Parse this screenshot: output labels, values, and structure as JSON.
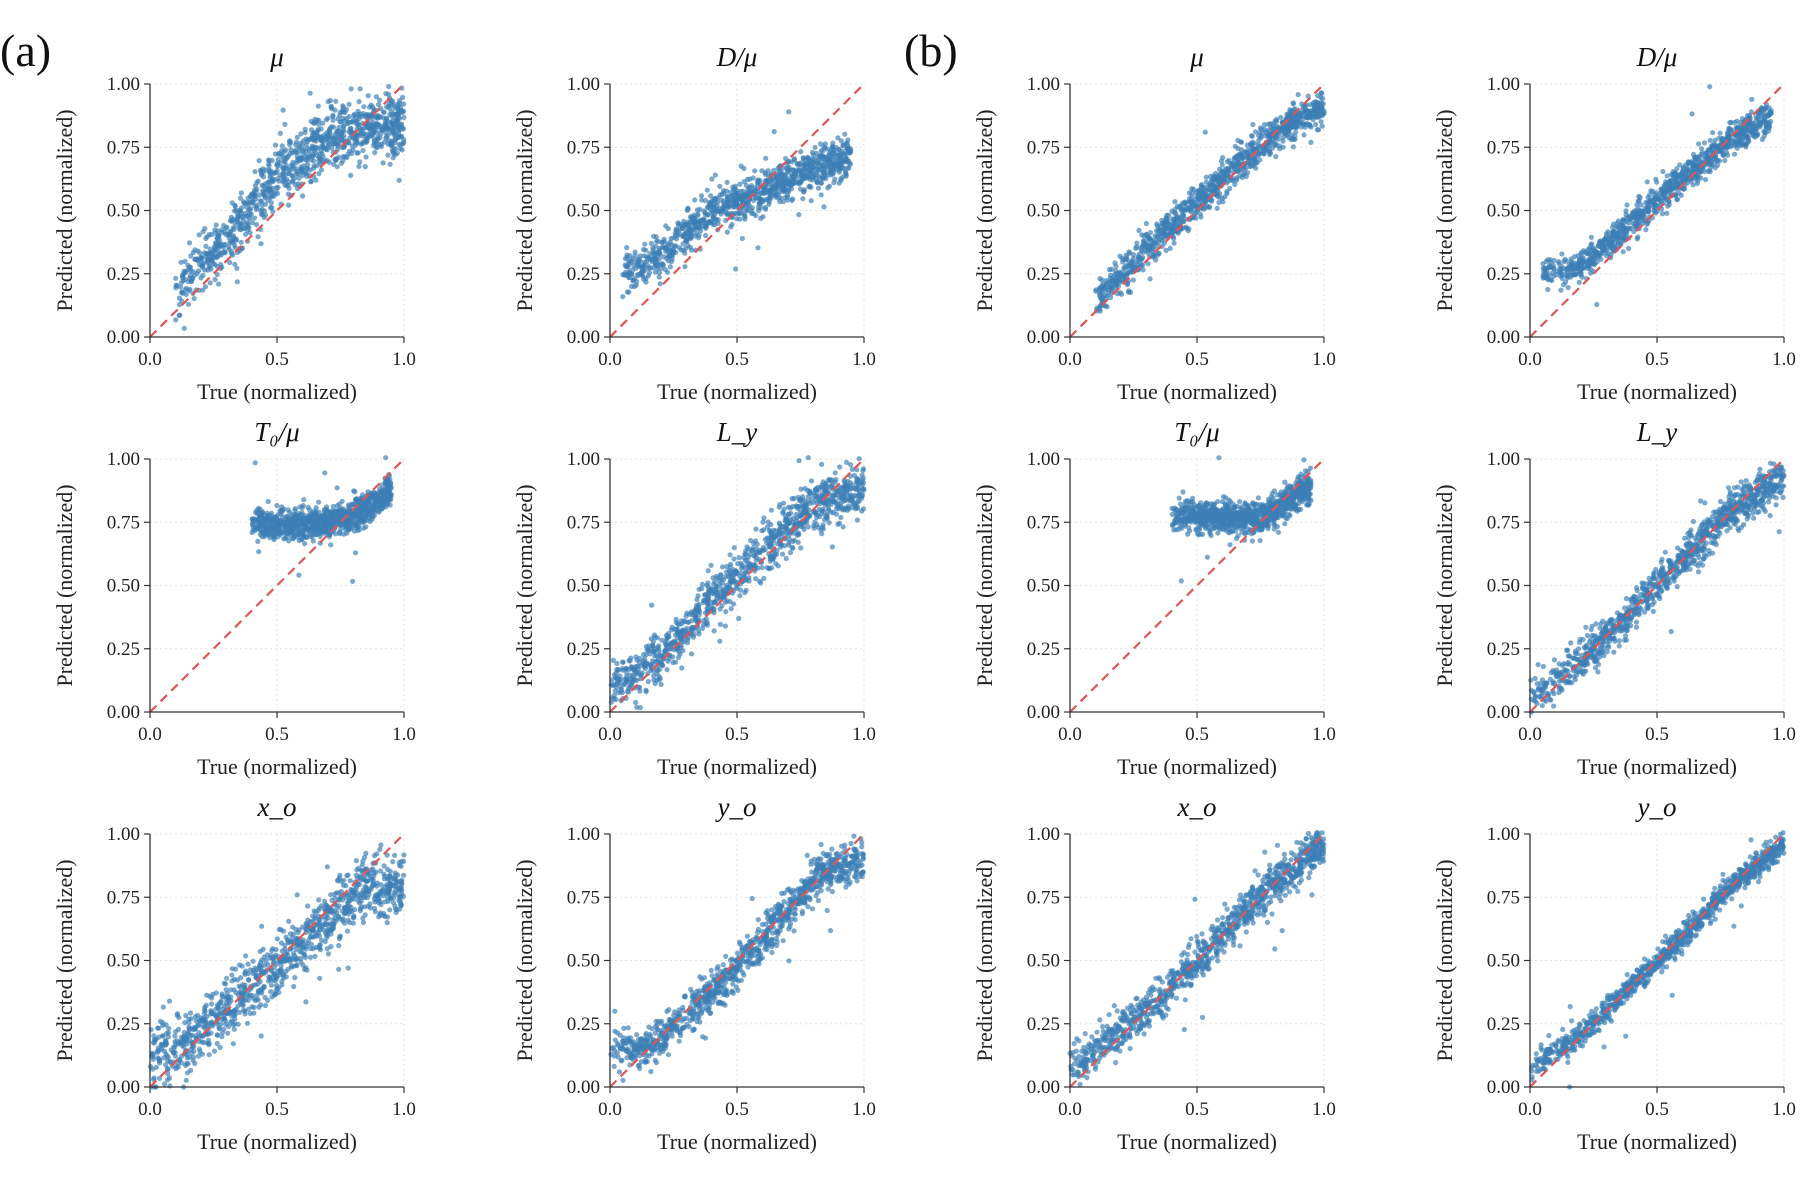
{
  "figure": {
    "groups": [
      {
        "label": "(a)"
      },
      {
        "label": "(b)"
      }
    ]
  },
  "colors": {
    "points": "#3c7fb6",
    "reference_line": "#e05555",
    "axes": "#333333"
  },
  "chart_data": [
    {
      "type": "scatter",
      "group": "(a)",
      "title": "μ",
      "xlabel": "True (normalized)",
      "ylabel": "Predicted (normalized)",
      "xlim": [
        0,
        1
      ],
      "ylim": [
        0,
        1
      ],
      "xticks": [
        "0.0",
        "0.5",
        "1.0"
      ],
      "yticks": [
        "0.00",
        "0.25",
        "0.50",
        "0.75",
        "1.00"
      ],
      "reference_line": "y = x",
      "grid": true,
      "approx_fit": {
        "x_range": [
          0.1,
          1.0
        ],
        "curve": [
          [
            0.1,
            0.18
          ],
          [
            0.3,
            0.38
          ],
          [
            0.5,
            0.64
          ],
          [
            0.7,
            0.79
          ],
          [
            0.85,
            0.83
          ],
          [
            1.0,
            0.84
          ]
        ],
        "spread": 0.06,
        "n_points": 1000
      }
    },
    {
      "type": "scatter",
      "group": "(a)",
      "title": "D/μ",
      "xlabel": "True (normalized)",
      "ylabel": "Predicted (normalized)",
      "xlim": [
        0,
        1
      ],
      "ylim": [
        0,
        1
      ],
      "xticks": [
        "0.0",
        "0.5",
        "1.0"
      ],
      "yticks": [
        "0.00",
        "0.25",
        "0.50",
        "0.75",
        "1.00"
      ],
      "reference_line": "y = x",
      "grid": true,
      "approx_fit": {
        "x_range": [
          0.05,
          0.95
        ],
        "curve": [
          [
            0.05,
            0.25
          ],
          [
            0.2,
            0.32
          ],
          [
            0.4,
            0.5
          ],
          [
            0.6,
            0.57
          ],
          [
            0.8,
            0.66
          ],
          [
            0.95,
            0.72
          ]
        ],
        "spread": 0.04,
        "n_points": 1000
      }
    },
    {
      "type": "scatter",
      "group": "(a)",
      "title": "T₀/μ",
      "xlabel": "True (normalized)",
      "ylabel": "Predicted (normalized)",
      "xlim": [
        0,
        1
      ],
      "ylim": [
        0,
        1
      ],
      "xticks": [
        "0.0",
        "0.5",
        "1.0"
      ],
      "yticks": [
        "0.00",
        "0.25",
        "0.50",
        "0.75",
        "1.00"
      ],
      "reference_line": "y = x",
      "grid": true,
      "approx_fit": {
        "x_range": [
          0.4,
          0.95
        ],
        "curve": [
          [
            0.4,
            0.745
          ],
          [
            0.6,
            0.74
          ],
          [
            0.75,
            0.76
          ],
          [
            0.85,
            0.8
          ],
          [
            0.95,
            0.88
          ]
        ],
        "spread": 0.03,
        "n_points": 1000
      }
    },
    {
      "type": "scatter",
      "group": "(a)",
      "title": "L_y",
      "xlabel": "True (normalized)",
      "ylabel": "Predicted (normalized)",
      "xlim": [
        0,
        1
      ],
      "ylim": [
        0,
        1
      ],
      "xticks": [
        "0.0",
        "0.5",
        "1.0"
      ],
      "yticks": [
        "0.00",
        "0.25",
        "0.50",
        "0.75",
        "1.00"
      ],
      "reference_line": "y = x",
      "grid": true,
      "approx_fit": {
        "x_range": [
          0.0,
          1.0
        ],
        "curve": [
          [
            0.0,
            0.1
          ],
          [
            0.2,
            0.22
          ],
          [
            0.4,
            0.45
          ],
          [
            0.6,
            0.63
          ],
          [
            0.8,
            0.82
          ],
          [
            0.9,
            0.86
          ],
          [
            1.0,
            0.86
          ]
        ],
        "spread": 0.05,
        "n_points": 1000
      }
    },
    {
      "type": "scatter",
      "group": "(a)",
      "title": "x_o",
      "xlabel": "True (normalized)",
      "ylabel": "Predicted (normalized)",
      "xlim": [
        0,
        1
      ],
      "ylim": [
        0,
        1
      ],
      "xticks": [
        "0.0",
        "0.5",
        "1.0"
      ],
      "yticks": [
        "0.00",
        "0.25",
        "0.50",
        "0.75",
        "1.00"
      ],
      "reference_line": "y = x",
      "grid": true,
      "approx_fit": {
        "x_range": [
          0.0,
          1.0
        ],
        "curve": [
          [
            0.0,
            0.13
          ],
          [
            0.15,
            0.16
          ],
          [
            0.3,
            0.32
          ],
          [
            0.5,
            0.47
          ],
          [
            0.7,
            0.66
          ],
          [
            0.85,
            0.8
          ],
          [
            1.0,
            0.78
          ]
        ],
        "spread": 0.06,
        "n_points": 1000
      }
    },
    {
      "type": "scatter",
      "group": "(a)",
      "title": "y_o",
      "xlabel": "True (normalized)",
      "ylabel": "Predicted (normalized)",
      "xlim": [
        0,
        1
      ],
      "ylim": [
        0,
        1
      ],
      "xticks": [
        "0.0",
        "0.5",
        "1.0"
      ],
      "yticks": [
        "0.00",
        "0.25",
        "0.50",
        "0.75",
        "1.00"
      ],
      "reference_line": "y = x",
      "grid": true,
      "approx_fit": {
        "x_range": [
          0.0,
          1.0
        ],
        "curve": [
          [
            0.0,
            0.14
          ],
          [
            0.15,
            0.16
          ],
          [
            0.3,
            0.28
          ],
          [
            0.5,
            0.47
          ],
          [
            0.7,
            0.7
          ],
          [
            0.85,
            0.86
          ],
          [
            1.0,
            0.89
          ]
        ],
        "spread": 0.04,
        "n_points": 1000
      }
    },
    {
      "type": "scatter",
      "group": "(b)",
      "title": "μ",
      "xlabel": "True (normalized)",
      "ylabel": "Predicted (normalized)",
      "xlim": [
        0,
        1
      ],
      "ylim": [
        0,
        1
      ],
      "xticks": [
        "0.0",
        "0.5",
        "1.0"
      ],
      "yticks": [
        "0.00",
        "0.25",
        "0.50",
        "0.75",
        "1.00"
      ],
      "reference_line": "y = x",
      "grid": true,
      "approx_fit": {
        "x_range": [
          0.1,
          1.0
        ],
        "curve": [
          [
            0.1,
            0.14
          ],
          [
            0.3,
            0.35
          ],
          [
            0.5,
            0.53
          ],
          [
            0.7,
            0.72
          ],
          [
            0.9,
            0.87
          ],
          [
            1.0,
            0.9
          ]
        ],
        "spread": 0.035,
        "n_points": 1000
      }
    },
    {
      "type": "scatter",
      "group": "(b)",
      "title": "D/μ",
      "xlabel": "True (normalized)",
      "ylabel": "Predicted (normalized)",
      "xlim": [
        0,
        1
      ],
      "ylim": [
        0,
        1
      ],
      "xticks": [
        "0.0",
        "0.5",
        "1.0"
      ],
      "yticks": [
        "0.00",
        "0.25",
        "0.50",
        "0.75",
        "1.00"
      ],
      "reference_line": "y = x",
      "grid": true,
      "approx_fit": {
        "x_range": [
          0.05,
          0.95
        ],
        "curve": [
          [
            0.05,
            0.25
          ],
          [
            0.2,
            0.28
          ],
          [
            0.4,
            0.45
          ],
          [
            0.6,
            0.63
          ],
          [
            0.8,
            0.79
          ],
          [
            0.95,
            0.87
          ]
        ],
        "spread": 0.03,
        "n_points": 1000
      }
    },
    {
      "type": "scatter",
      "group": "(b)",
      "title": "T₀/μ",
      "xlabel": "True (normalized)",
      "ylabel": "Predicted (normalized)",
      "xlim": [
        0,
        1
      ],
      "ylim": [
        0,
        1
      ],
      "xticks": [
        "0.0",
        "0.5",
        "1.0"
      ],
      "yticks": [
        "0.00",
        "0.25",
        "0.50",
        "0.75",
        "1.00"
      ],
      "reference_line": "y = x",
      "grid": true,
      "approx_fit": {
        "x_range": [
          0.4,
          0.95
        ],
        "curve": [
          [
            0.4,
            0.78
          ],
          [
            0.6,
            0.77
          ],
          [
            0.75,
            0.76
          ],
          [
            0.85,
            0.82
          ],
          [
            0.95,
            0.9
          ]
        ],
        "spread": 0.03,
        "n_points": 1000
      }
    },
    {
      "type": "scatter",
      "group": "(b)",
      "title": "L_y",
      "xlabel": "True (normalized)",
      "ylabel": "Predicted (normalized)",
      "xlim": [
        0,
        1
      ],
      "ylim": [
        0,
        1
      ],
      "xticks": [
        "0.0",
        "0.5",
        "1.0"
      ],
      "yticks": [
        "0.00",
        "0.25",
        "0.50",
        "0.75",
        "1.00"
      ],
      "reference_line": "y = x",
      "grid": true,
      "approx_fit": {
        "x_range": [
          0.0,
          1.0
        ],
        "curve": [
          [
            0.0,
            0.05
          ],
          [
            0.2,
            0.2
          ],
          [
            0.4,
            0.4
          ],
          [
            0.6,
            0.6
          ],
          [
            0.8,
            0.8
          ],
          [
            1.0,
            0.93
          ]
        ],
        "spread": 0.04,
        "n_points": 1000
      }
    },
    {
      "type": "scatter",
      "group": "(b)",
      "title": "x_o",
      "xlabel": "True (normalized)",
      "ylabel": "Predicted (normalized)",
      "xlim": [
        0,
        1
      ],
      "ylim": [
        0,
        1
      ],
      "xticks": [
        "0.0",
        "0.5",
        "1.0"
      ],
      "yticks": [
        "0.00",
        "0.25",
        "0.50",
        "0.75",
        "1.00"
      ],
      "reference_line": "y = x",
      "grid": true,
      "approx_fit": {
        "x_range": [
          0.0,
          1.0
        ],
        "curve": [
          [
            0.0,
            0.07
          ],
          [
            0.2,
            0.22
          ],
          [
            0.4,
            0.4
          ],
          [
            0.6,
            0.6
          ],
          [
            0.8,
            0.8
          ],
          [
            1.0,
            0.96
          ]
        ],
        "spread": 0.04,
        "n_points": 1000
      }
    },
    {
      "type": "scatter",
      "group": "(b)",
      "title": "y_o",
      "xlabel": "True (normalized)",
      "ylabel": "Predicted (normalized)",
      "xlim": [
        0,
        1
      ],
      "ylim": [
        0,
        1
      ],
      "xticks": [
        "0.0",
        "0.5",
        "1.0"
      ],
      "yticks": [
        "0.00",
        "0.25",
        "0.50",
        "0.75",
        "1.00"
      ],
      "reference_line": "y = x",
      "grid": true,
      "approx_fit": {
        "x_range": [
          0.0,
          1.0
        ],
        "curve": [
          [
            0.0,
            0.07
          ],
          [
            0.2,
            0.21
          ],
          [
            0.4,
            0.4
          ],
          [
            0.6,
            0.59
          ],
          [
            0.8,
            0.8
          ],
          [
            1.0,
            0.96
          ]
        ],
        "spread": 0.025,
        "n_points": 1000
      }
    }
  ]
}
